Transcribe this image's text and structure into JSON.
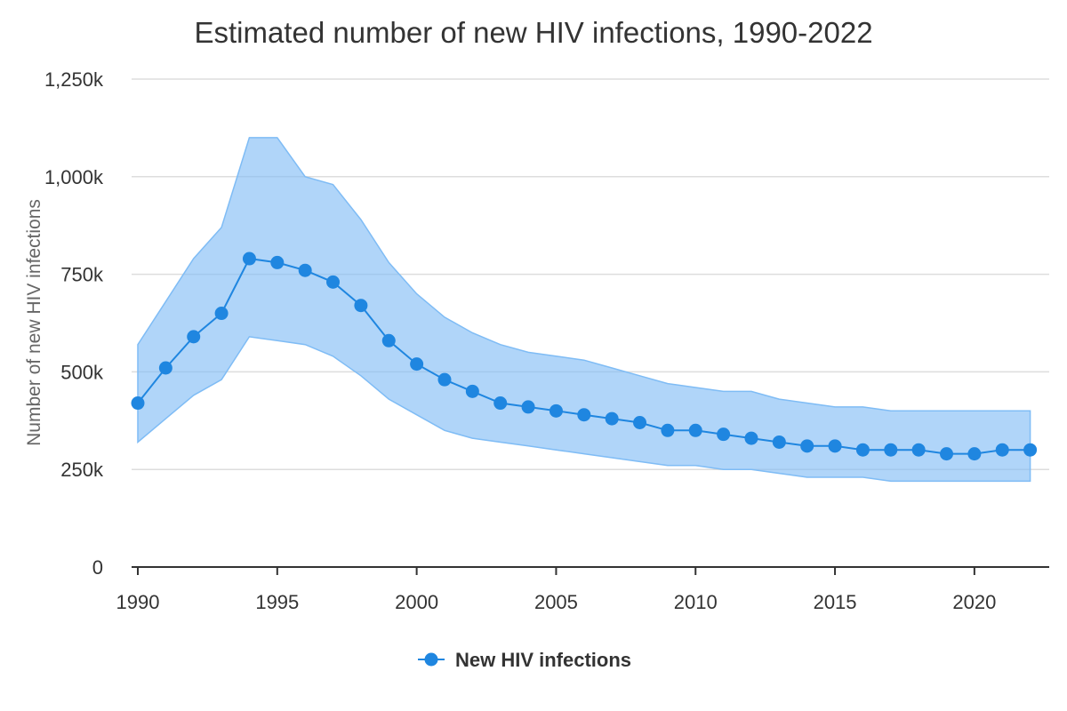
{
  "chart_data": {
    "type": "line",
    "title": "Estimated number of new HIV infections, 1990-2022",
    "xlabel": "",
    "ylabel": "Number of new HIV infections",
    "xlim": [
      1990,
      2022.3
    ],
    "ylim": [
      0,
      1250000
    ],
    "x_ticks": [
      1990,
      1995,
      2000,
      2005,
      2010,
      2015,
      2020
    ],
    "x_tick_labels": [
      "1990",
      "1995",
      "2000",
      "2005",
      "2010",
      "2015",
      "2020"
    ],
    "y_ticks": [
      0,
      250000,
      500000,
      750000,
      1000000,
      1250000
    ],
    "y_tick_labels": [
      "0",
      "250k",
      "500k",
      "750k",
      "1,000k",
      "1,250k"
    ],
    "grid": "horizontal",
    "legend_position": "bottom-center",
    "x": [
      1990,
      1991,
      1992,
      1993,
      1994,
      1995,
      1996,
      1997,
      1998,
      1999,
      2000,
      2001,
      2002,
      2003,
      2004,
      2005,
      2006,
      2007,
      2008,
      2009,
      2010,
      2011,
      2012,
      2013,
      2014,
      2015,
      2016,
      2017,
      2018,
      2019,
      2020,
      2021,
      2022
    ],
    "series": [
      {
        "name": "New HIV infections",
        "color": "#1f86e0",
        "values": [
          420000,
          510000,
          590000,
          650000,
          790000,
          780000,
          760000,
          730000,
          670000,
          580000,
          520000,
          480000,
          450000,
          420000,
          410000,
          400000,
          390000,
          380000,
          370000,
          350000,
          350000,
          340000,
          330000,
          320000,
          310000,
          310000,
          300000,
          300000,
          300000,
          290000,
          290000,
          300000,
          300000
        ]
      }
    ],
    "range_band": {
      "color": "#7fbcf5",
      "lower": [
        320000,
        380000,
        440000,
        480000,
        590000,
        580000,
        570000,
        540000,
        490000,
        430000,
        390000,
        350000,
        330000,
        320000,
        310000,
        300000,
        290000,
        280000,
        270000,
        260000,
        260000,
        250000,
        250000,
        240000,
        230000,
        230000,
        230000,
        220000,
        220000,
        220000,
        220000,
        220000,
        220000
      ],
      "upper": [
        570000,
        680000,
        790000,
        870000,
        1100000,
        1100000,
        1000000,
        980000,
        890000,
        780000,
        700000,
        640000,
        600000,
        570000,
        550000,
        540000,
        530000,
        510000,
        490000,
        470000,
        460000,
        450000,
        450000,
        430000,
        420000,
        410000,
        410000,
        400000,
        400000,
        400000,
        400000,
        400000,
        400000
      ]
    }
  }
}
